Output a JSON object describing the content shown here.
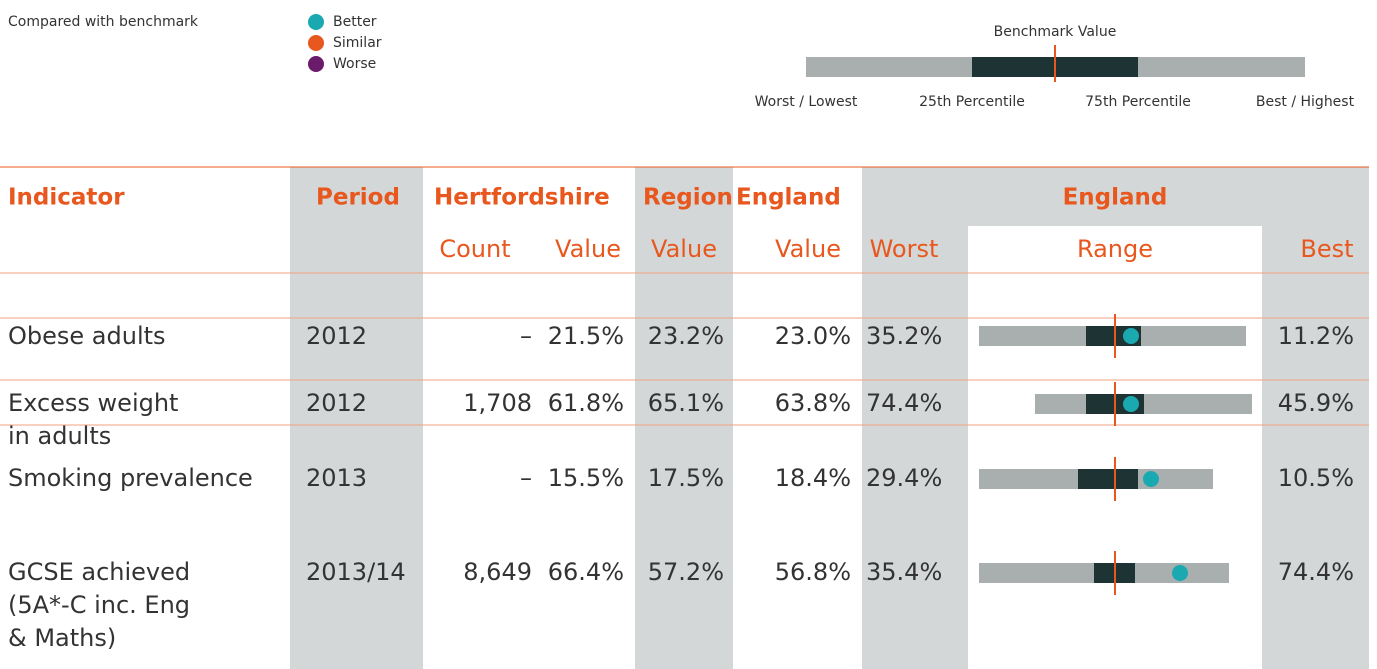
{
  "legend": {
    "title": "Compared with benchmark",
    "items": [
      {
        "label": "Better",
        "color": "#1aa9b0"
      },
      {
        "label": "Similar",
        "color": "#e8571e"
      },
      {
        "label": "Worse",
        "color": "#6b1b6b"
      }
    ]
  },
  "key": {
    "title": "Benchmark Value",
    "labels": [
      "Worst / Lowest",
      "25th Percentile",
      "75th Percentile",
      "Best / Highest"
    ]
  },
  "table": {
    "headers": [
      "Indicator",
      "Period",
      "Hertfordshire",
      "Region",
      "England",
      "England"
    ],
    "subheaders": [
      "Count",
      "Value",
      "Value",
      "Value",
      "Worst",
      "Range",
      "Best"
    ],
    "rows": [
      {
        "indicator": [
          "Obese adults"
        ],
        "period": "2012",
        "count": "–",
        "value": "21.5%",
        "region": "23.2%",
        "england": "23.0%",
        "worst": "35.2%",
        "best": "11.2%"
      },
      {
        "indicator": [
          "Excess weight",
          "in adults"
        ],
        "period": "2012",
        "count": "1,708",
        "value": "61.8%",
        "region": "65.1%",
        "england": "63.8%",
        "worst": "74.4%",
        "best": "45.9%"
      },
      {
        "indicator": [
          "Smoking prevalence"
        ],
        "period": "2013",
        "count": "–",
        "value": "15.5%",
        "region": "17.5%",
        "england": "18.4%",
        "worst": "29.4%",
        "best": "10.5%"
      },
      {
        "indicator": [
          "GCSE achieved",
          "(5A*-C inc. Eng",
          "& Maths)"
        ],
        "period": "2013/14",
        "count": "8,649",
        "value": "66.4%",
        "region": "57.2%",
        "england": "56.8%",
        "worst": "35.4%",
        "best": "74.4%"
      }
    ]
  }
}
